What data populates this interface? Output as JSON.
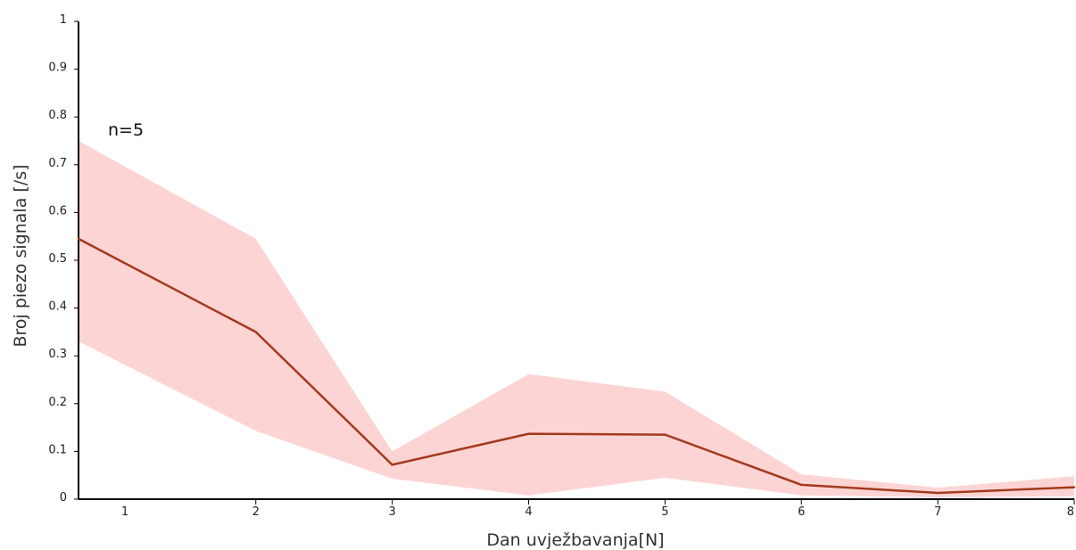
{
  "chart_data": {
    "type": "line",
    "title": "",
    "xlabel": "Dan uvježbavanja[N]",
    "ylabel": "Broj piezo signala [/s]",
    "annotation": "n=5",
    "xlim": [
      0.7,
      8
    ],
    "ylim": [
      0,
      1
    ],
    "x_ticks": [
      "1",
      "2",
      "3",
      "4",
      "5",
      "6",
      "7",
      "8"
    ],
    "y_ticks": [
      "0",
      "0.1",
      "0.2",
      "0.3",
      "0.4",
      "0.5",
      "0.6",
      "0.7",
      "0.8",
      "0.9",
      "1"
    ],
    "grid": false,
    "series": [
      {
        "x": [
          0.7,
          2,
          3,
          4,
          5,
          6,
          7,
          8
        ],
        "values": [
          0.545,
          0.35,
          0.072,
          0.137,
          0.135,
          0.03,
          0.013,
          0.025
        ],
        "upper": [
          0.75,
          0.545,
          0.1,
          0.262,
          0.225,
          0.052,
          0.024,
          0.048
        ],
        "lower": [
          0.33,
          0.143,
          0.043,
          0.008,
          0.045,
          0.008,
          0.004,
          0.006
        ]
      }
    ],
    "colors": {
      "line": "#a33a1c",
      "band": "#fdd4d4",
      "axis": "#000000"
    }
  }
}
